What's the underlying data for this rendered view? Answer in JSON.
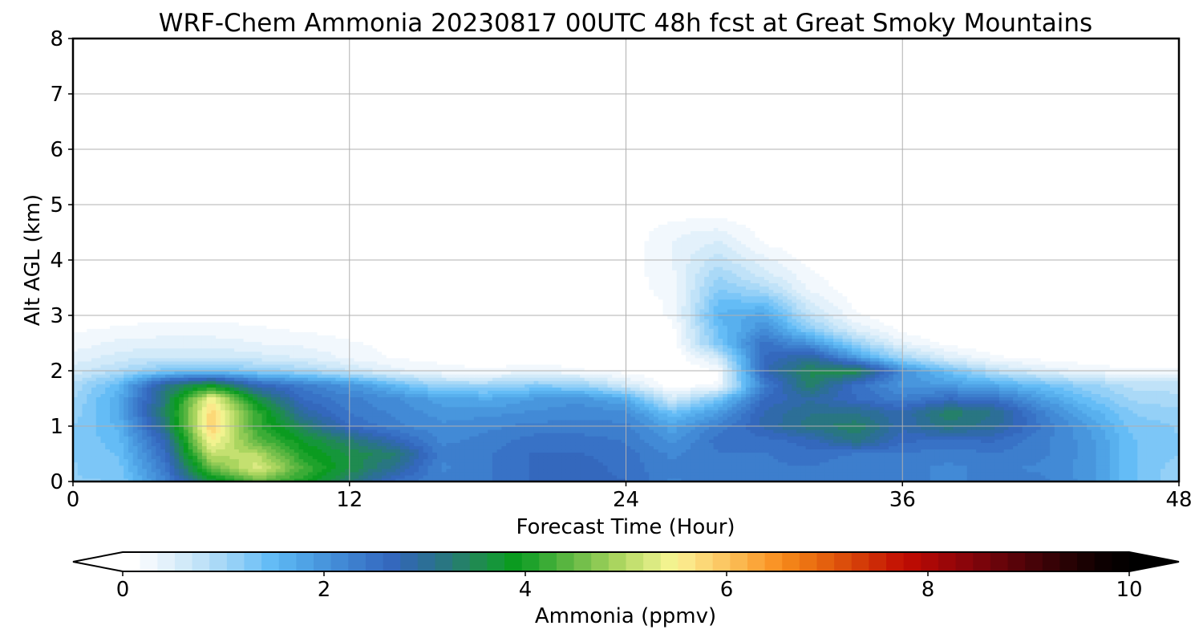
{
  "chart_data": {
    "type": "heatmap",
    "title": "WRF-Chem Ammonia  20230817 00UTC 48h fcst at Great Smoky Mountains",
    "xlabel": "Forecast Time (Hour)",
    "ylabel": "Alt AGL (km)",
    "xlim": [
      0,
      48
    ],
    "ylim": [
      0,
      8
    ],
    "xticks": [
      "0",
      "12",
      "24",
      "36",
      "48"
    ],
    "yticks": [
      "0",
      "1",
      "2",
      "3",
      "4",
      "5",
      "6",
      "7",
      "8"
    ],
    "grid": true,
    "colorbar": {
      "label": "Ammonia  (ppmv)",
      "range": [
        0,
        10
      ],
      "ticks": [
        "0",
        "2",
        "4",
        "6",
        "8",
        "10"
      ],
      "extend": "both",
      "min_color": "#ffffff",
      "max_color": "#000000",
      "colors": [
        "#ffffff",
        "#f2f8fd",
        "#e3f1fb",
        "#d2eaf9",
        "#c0e2f8",
        "#aad9f7",
        "#94d0f7",
        "#7cc6f7",
        "#64bcf6",
        "#58b0ee",
        "#4fa3e6",
        "#4896dd",
        "#428ad6",
        "#3d7ecd",
        "#3872c6",
        "#3468bd",
        "#306aaa",
        "#2c6f97",
        "#297682",
        "#25806a",
        "#1f8b50",
        "#15963a",
        "#0b9b20",
        "#1ea22b",
        "#3bac36",
        "#58b540",
        "#74bf4b",
        "#8fca55",
        "#aad55f",
        "#c4e070",
        "#dbea82",
        "#f2f38f",
        "#fbe88a",
        "#fcd877",
        "#fcc864",
        "#fbb84f",
        "#fba63a",
        "#fa9426",
        "#f38318",
        "#ec7212",
        "#e4600e",
        "#dc4e0b",
        "#d43c08",
        "#cc2906",
        "#c51604",
        "#bb0b03",
        "#ab0806",
        "#9b0608",
        "#8b050a",
        "#7a040a",
        "#69040a",
        "#580309",
        "#470308",
        "#370206",
        "#280204",
        "#1a0102",
        "#0d0001",
        "#050000"
      ]
    },
    "grid_x_hours": [
      0,
      2,
      4,
      6,
      8,
      10,
      12,
      14,
      16,
      18,
      20,
      22,
      24,
      26,
      28,
      30,
      32,
      34,
      36,
      38,
      40,
      42,
      44,
      46,
      48
    ],
    "grid_y_km": [
      0,
      0.25,
      0.5,
      0.75,
      1,
      1.25,
      1.5,
      1.75,
      2,
      2.25,
      2.5,
      2.75,
      3,
      3.25,
      3.5,
      3.75,
      4,
      4.25,
      4.5,
      4.75,
      5,
      5.5,
      6,
      7,
      8
    ],
    "values_ppmv": [
      [
        1.2,
        1.2,
        2.2,
        3.6,
        4.5,
        4.0,
        3.3,
        2.5,
        2.3,
        2.4,
        2.6,
        2.7,
        2.6,
        2.2,
        2.4,
        2.4,
        2.3,
        2.3,
        2.3,
        2.2,
        2.3,
        2.3,
        2.0,
        1.4,
        1.1
      ],
      [
        1.2,
        1.3,
        2.4,
        4.5,
        5.3,
        4.3,
        3.6,
        3.0,
        2.2,
        2.4,
        2.6,
        2.7,
        2.5,
        2.3,
        2.4,
        2.4,
        2.4,
        2.3,
        2.3,
        2.2,
        2.3,
        2.2,
        2.0,
        1.4,
        1.1
      ],
      [
        1.2,
        1.4,
        2.6,
        5.1,
        5.0,
        4.0,
        3.6,
        3.3,
        2.3,
        2.4,
        2.6,
        2.6,
        2.5,
        2.2,
        2.4,
        2.4,
        2.5,
        2.4,
        2.4,
        2.3,
        2.4,
        2.3,
        2.0,
        1.4,
        1.2
      ],
      [
        1.2,
        1.5,
        2.8,
        5.6,
        4.4,
        3.8,
        3.3,
        2.7,
        2.2,
        2.3,
        2.5,
        2.5,
        2.4,
        2.0,
        2.5,
        2.5,
        2.7,
        3.2,
        2.6,
        2.6,
        2.6,
        2.3,
        2.0,
        1.4,
        1.2
      ],
      [
        1.2,
        1.6,
        3.2,
        5.9,
        4.2,
        3.4,
        2.6,
        2.3,
        2.1,
        2.2,
        2.3,
        2.3,
        2.3,
        1.8,
        2.3,
        2.8,
        3.2,
        3.4,
        2.8,
        3.2,
        3.0,
        2.4,
        1.9,
        1.3,
        1.2
      ],
      [
        1.1,
        1.7,
        3.4,
        5.8,
        4.2,
        2.9,
        2.4,
        2.2,
        2.0,
        2.0,
        2.1,
        2.2,
        2.1,
        1.4,
        1.9,
        2.8,
        3.1,
        3.1,
        2.8,
        3.4,
        3.1,
        2.3,
        1.7,
        1.2,
        1.1
      ],
      [
        1.0,
        1.7,
        3.3,
        5.5,
        3.6,
        2.6,
        2.3,
        2.1,
        1.8,
        1.7,
        1.9,
        2.0,
        1.7,
        0.6,
        1.3,
        2.6,
        2.9,
        2.6,
        2.3,
        2.6,
        2.5,
        1.9,
        1.4,
        1.0,
        0.9
      ],
      [
        0.9,
        1.5,
        3.1,
        3.8,
        2.7,
        2.3,
        2.0,
        1.5,
        1.0,
        1.0,
        1.2,
        1.1,
        0.6,
        0.05,
        0.2,
        2.3,
        3.4,
        2.5,
        2.0,
        1.9,
        1.7,
        1.4,
        1.1,
        0.8,
        0.8
      ],
      [
        0.6,
        0.9,
        1.3,
        1.4,
        1.2,
        1.0,
        0.7,
        0.4,
        0.25,
        0.2,
        0.3,
        0.2,
        0.1,
        0.0,
        0.15,
        2.7,
        3.5,
        3.6,
        2.1,
        1.4,
        0.8,
        0.5,
        0.3,
        0.2,
        0.2
      ],
      [
        0.4,
        0.6,
        0.7,
        0.7,
        0.6,
        0.5,
        0.3,
        0.15,
        0.1,
        0.05,
        0.05,
        0.05,
        0.0,
        0.0,
        0.6,
        2.6,
        3.0,
        1.9,
        1.0,
        0.5,
        0.2,
        0.1,
        0.05,
        0.03,
        0.03
      ],
      [
        0.25,
        0.4,
        0.45,
        0.45,
        0.35,
        0.3,
        0.2,
        0.1,
        0.05,
        0.02,
        0.02,
        0.02,
        0.0,
        0.05,
        1.3,
        2.5,
        2.0,
        1.1,
        0.4,
        0.1,
        0.03,
        0.02,
        0.02,
        0.01,
        0.01
      ],
      [
        0.15,
        0.2,
        0.25,
        0.25,
        0.2,
        0.15,
        0.1,
        0.05,
        0.02,
        0.0,
        0.0,
        0.0,
        0.0,
        0.1,
        1.4,
        2.1,
        1.2,
        0.5,
        0.1,
        0.0,
        0.0,
        0.0,
        0.0,
        0.0,
        0.0
      ],
      [
        0.1,
        0.1,
        0.12,
        0.12,
        0.1,
        0.08,
        0.05,
        0.02,
        0.0,
        0.0,
        0.0,
        0.0,
        0.05,
        0.2,
        1.6,
        1.8,
        0.8,
        0.2,
        0.0,
        0.0,
        0.0,
        0.0,
        0.0,
        0.0,
        0.0
      ],
      [
        0.05,
        0.05,
        0.05,
        0.05,
        0.05,
        0.04,
        0.02,
        0.0,
        0.0,
        0.0,
        0.0,
        0.0,
        0.08,
        0.2,
        1.4,
        1.4,
        0.5,
        0.1,
        0.0,
        0.0,
        0.0,
        0.0,
        0.0,
        0.0,
        0.0
      ],
      [
        0.03,
        0.03,
        0.03,
        0.03,
        0.03,
        0.02,
        0.01,
        0.0,
        0.0,
        0.0,
        0.0,
        0.0,
        0.08,
        0.25,
        1.2,
        0.9,
        0.3,
        0.05,
        0.0,
        0.0,
        0.0,
        0.0,
        0.0,
        0.0,
        0.0
      ],
      [
        0.02,
        0.02,
        0.02,
        0.02,
        0.02,
        0.01,
        0.0,
        0.0,
        0.0,
        0.0,
        0.0,
        0.0,
        0.08,
        0.3,
        1.0,
        0.6,
        0.2,
        0.02,
        0.0,
        0.0,
        0.0,
        0.0,
        0.0,
        0.0,
        0.0
      ],
      [
        0.01,
        0.01,
        0.01,
        0.01,
        0.01,
        0.0,
        0.0,
        0.0,
        0.0,
        0.0,
        0.0,
        0.0,
        0.06,
        0.35,
        0.8,
        0.4,
        0.1,
        0.0,
        0.0,
        0.0,
        0.0,
        0.0,
        0.0,
        0.0,
        0.0
      ],
      [
        0.0,
        0.0,
        0.0,
        0.0,
        0.0,
        0.0,
        0.0,
        0.0,
        0.0,
        0.0,
        0.0,
        0.0,
        0.05,
        0.35,
        0.6,
        0.2,
        0.05,
        0.0,
        0.0,
        0.0,
        0.0,
        0.0,
        0.0,
        0.0,
        0.0
      ],
      [
        0.0,
        0.0,
        0.0,
        0.0,
        0.0,
        0.0,
        0.0,
        0.0,
        0.0,
        0.0,
        0.0,
        0.0,
        0.04,
        0.3,
        0.4,
        0.1,
        0.0,
        0.0,
        0.0,
        0.0,
        0.0,
        0.0,
        0.0,
        0.0,
        0.0
      ],
      [
        0.0,
        0.0,
        0.0,
        0.0,
        0.0,
        0.0,
        0.0,
        0.0,
        0.0,
        0.0,
        0.0,
        0.0,
        0.02,
        0.15,
        0.2,
        0.05,
        0.0,
        0.0,
        0.0,
        0.0,
        0.0,
        0.0,
        0.0,
        0.0,
        0.0
      ],
      [
        0.0,
        0.0,
        0.0,
        0.0,
        0.0,
        0.0,
        0.0,
        0.0,
        0.0,
        0.0,
        0.0,
        0.0,
        0.0,
        0.05,
        0.05,
        0.0,
        0.0,
        0.0,
        0.0,
        0.0,
        0.0,
        0.0,
        0.0,
        0.0,
        0.0
      ],
      [
        0.0,
        0.0,
        0.0,
        0.0,
        0.0,
        0.0,
        0.0,
        0.0,
        0.0,
        0.0,
        0.0,
        0.0,
        0.0,
        0.0,
        0.0,
        0.0,
        0.0,
        0.0,
        0.0,
        0.0,
        0.0,
        0.0,
        0.0,
        0.0,
        0.0
      ],
      [
        0.0,
        0.0,
        0.0,
        0.0,
        0.0,
        0.0,
        0.0,
        0.0,
        0.0,
        0.0,
        0.0,
        0.0,
        0.0,
        0.0,
        0.0,
        0.0,
        0.0,
        0.0,
        0.0,
        0.0,
        0.0,
        0.0,
        0.0,
        0.0,
        0.0
      ],
      [
        0.0,
        0.0,
        0.0,
        0.0,
        0.0,
        0.0,
        0.0,
        0.0,
        0.0,
        0.0,
        0.0,
        0.0,
        0.0,
        0.0,
        0.0,
        0.0,
        0.0,
        0.0,
        0.0,
        0.0,
        0.0,
        0.0,
        0.0,
        0.0,
        0.0
      ],
      [
        0.0,
        0.0,
        0.0,
        0.0,
        0.0,
        0.0,
        0.0,
        0.0,
        0.0,
        0.0,
        0.0,
        0.0,
        0.0,
        0.0,
        0.0,
        0.0,
        0.0,
        0.0,
        0.0,
        0.0,
        0.0,
        0.0,
        0.0,
        0.0,
        0.0
      ]
    ]
  }
}
